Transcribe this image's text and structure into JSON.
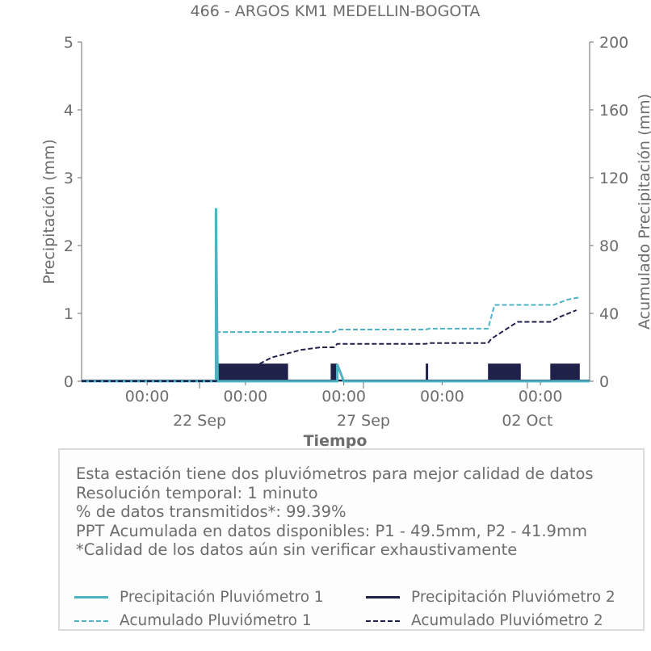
{
  "chart_data": {
    "type": "line",
    "title": "466 - ARGOS KM1 MEDELLIN-BOGOTA",
    "xlabel": "Tiempo",
    "ylabel_left": "Precipitación (mm)",
    "ylabel_right": "Acumulado Precipitación (mm)",
    "ylim_left": [
      0,
      5
    ],
    "ylim_right": [
      0,
      200
    ],
    "xlim_days": [
      -4.5,
      11
    ],
    "yticks_left": [
      "0",
      "1",
      "2",
      "3",
      "4",
      "5"
    ],
    "yticks_right": [
      "0",
      "40",
      "80",
      "120",
      "160",
      "200"
    ],
    "x_time_ticks": [
      "00:00",
      "00:00",
      "00:00",
      "00:00",
      "00:00"
    ],
    "x_date_ticks": [
      "22 Sep",
      "27 Sep",
      "02 Oct"
    ],
    "colors": {
      "p1": "#4db3c3",
      "p2": "#20214a"
    },
    "series": [
      {
        "name": "Precipitación Pluviómetro 1",
        "style": "solid",
        "axis": "left",
        "points": [
          [
            -4.5,
            0
          ],
          [
            -0.4,
            0
          ],
          [
            -0.4,
            2.55
          ],
          [
            -0.35,
            0
          ],
          [
            3.3,
            0
          ],
          [
            3.3,
            0.25
          ],
          [
            3.5,
            0
          ],
          [
            11,
            0
          ]
        ]
      },
      {
        "name": "Precipitación Pluviómetro 2",
        "style": "solid",
        "axis": "left",
        "bands": [
          [
            -0.4,
            1.8,
            0.26
          ],
          [
            3.1,
            3.3,
            0.26
          ],
          [
            6.0,
            6.05,
            0.26
          ],
          [
            7.9,
            8.9,
            0.26
          ],
          [
            9.8,
            10.7,
            0.26
          ]
        ]
      },
      {
        "name": "Acumulado Pluviómetro 1",
        "style": "dashed",
        "axis": "right",
        "points": [
          [
            -4.5,
            0
          ],
          [
            -0.4,
            0
          ],
          [
            -0.35,
            29
          ],
          [
            3.2,
            29
          ],
          [
            3.3,
            30.5
          ],
          [
            6.0,
            30.5
          ],
          [
            6.1,
            31
          ],
          [
            7.9,
            31
          ],
          [
            8.1,
            45
          ],
          [
            9.9,
            45
          ],
          [
            10.3,
            48
          ],
          [
            10.7,
            49.5
          ]
        ]
      },
      {
        "name": "Acumulado Pluviómetro 2",
        "style": "dashed",
        "axis": "right",
        "points": [
          [
            -4.5,
            0
          ],
          [
            -0.4,
            0
          ],
          [
            -0.35,
            1
          ],
          [
            0.6,
            7
          ],
          [
            1.3,
            14
          ],
          [
            2.2,
            18.5
          ],
          [
            2.8,
            20
          ],
          [
            3.2,
            20
          ],
          [
            3.3,
            22
          ],
          [
            6.0,
            22
          ],
          [
            6.1,
            22.5
          ],
          [
            7.9,
            22.5
          ],
          [
            8.0,
            25
          ],
          [
            8.4,
            30
          ],
          [
            8.8,
            35
          ],
          [
            9.8,
            35
          ],
          [
            10.1,
            38
          ],
          [
            10.6,
            41.9
          ]
        ]
      }
    ]
  },
  "info": {
    "lines": [
      "Esta estación tiene dos pluviómetros para mejor calidad de datos",
      "Resolución temporal: 1 minuto",
      "% de datos transmitidos*: 99.39%",
      "PPT Acumulada en datos disponibles: P1 - 49.5mm, P2 - 41.9mm",
      "*Calidad de los datos aún sin verificar exhaustivamente"
    ]
  },
  "legend": {
    "p1": "Precipitación Pluviómetro 1",
    "p2": "Precipitación Pluviómetro 2",
    "a1": "Acumulado Pluviómetro 1",
    "a2": "Acumulado Pluviómetro 2"
  }
}
